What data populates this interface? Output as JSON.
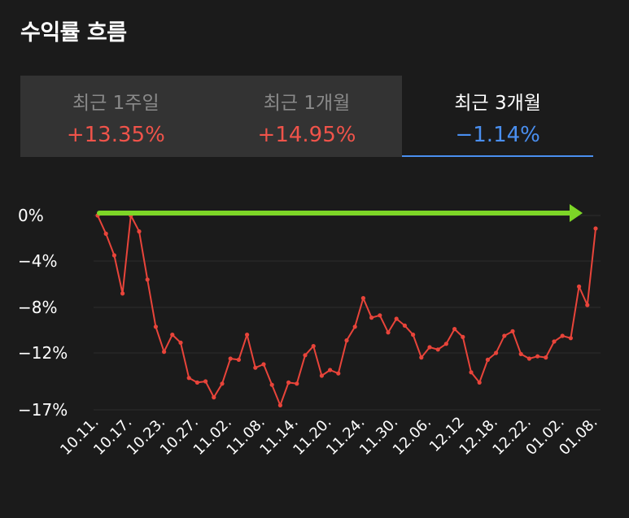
{
  "header": {
    "title": "수익률 흐름"
  },
  "tabs": [
    {
      "label": "최근 1주일",
      "value": "+13.35%",
      "color": "#f0534a",
      "active": false
    },
    {
      "label": "최근 1개월",
      "value": "+14.95%",
      "color": "#f0534a",
      "active": false
    },
    {
      "label": "최근 3개월",
      "value": "−1.14%",
      "color": "#4a8ff0",
      "active": true
    }
  ],
  "colors": {
    "line": "#e8443a",
    "arrow": "#7dd627",
    "accent": "#4a8ff0",
    "grid": "#2e2e2e"
  },
  "chart_data": {
    "type": "line",
    "title": "",
    "xlabel": "",
    "ylabel": "",
    "ytick_labels": [
      "0%",
      "−4%",
      "−8%",
      "−12%",
      "−17%"
    ],
    "ytick_values": [
      0,
      -4,
      -8,
      -12,
      -17
    ],
    "ylim": [
      -17,
      0
    ],
    "xtick_labels": [
      "10.11.",
      "10.17.",
      "10.23.",
      "10.27.",
      "11.02.",
      "11.08.",
      "11.14.",
      "11.20.",
      "11.24.",
      "11.30.",
      "12.06.",
      "12.12",
      "12.18.",
      "12.22.",
      "01.02.",
      "01.08."
    ],
    "series": [
      {
        "values": [
          0,
          -1.6,
          -3.5,
          -6.8,
          0,
          -1.4,
          -5.6,
          -9.7,
          -11.9,
          -10.4,
          -11.1,
          -14.2,
          -14.6,
          -14.5,
          -15.9,
          -14.7,
          -12.5,
          -12.6,
          -10.4,
          -13.3,
          -13.0,
          -14.8,
          -16.6,
          -14.6,
          -14.7,
          -12.2,
          -11.4,
          -14.0,
          -13.5,
          -13.8,
          -10.9,
          -9.7,
          -7.2,
          -8.9,
          -8.7,
          -10.2,
          -9.0,
          -9.6,
          -10.4,
          -12.4,
          -11.5,
          -11.7,
          -11.2,
          -9.9,
          -10.6,
          -13.7,
          -14.6,
          -12.6,
          -12.0,
          -10.5,
          -10.1,
          -12.1,
          -12.5,
          -12.3,
          -12.4,
          -11.0,
          -10.5,
          -10.7,
          -6.2,
          -7.8,
          -1.14
        ]
      }
    ],
    "grid": true,
    "annotation": "arrow along 0% from start to end"
  }
}
